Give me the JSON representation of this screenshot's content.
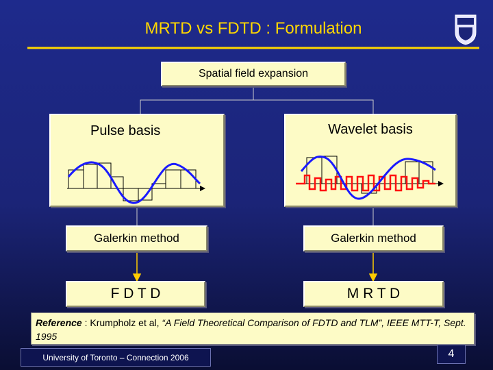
{
  "title": "MRTD vs FDTD : Formulation",
  "root": {
    "label": "Spatial field expansion"
  },
  "left": {
    "basis": "Pulse basis",
    "method": "Galerkin method",
    "result": "F D T D"
  },
  "right": {
    "basis": "Wavelet  basis",
    "method": "Galerkin method",
    "result": "M R T D"
  },
  "reference": {
    "label": "Reference",
    "authors": " : Krumpholz et al, ",
    "citation": "“A Field Theoretical Comparison of FDTD and TLM”, IEEE MTT-T, Sept. 1995"
  },
  "footer": "University of Toronto – Connection 2006",
  "page_number": "4"
}
